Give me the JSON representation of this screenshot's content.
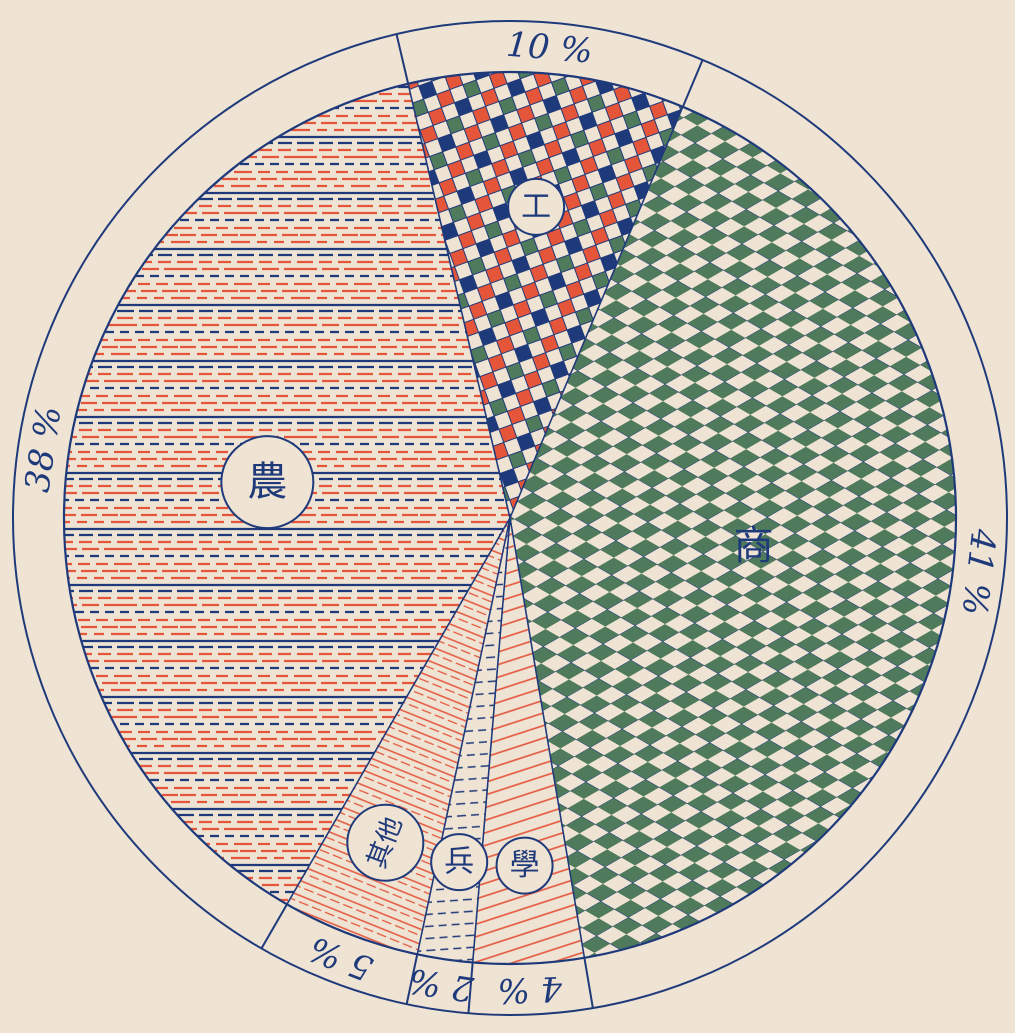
{
  "chart_data": {
    "type": "pie",
    "title": "",
    "slices": [
      {
        "label": "農",
        "value": 38,
        "value_label": "38 %",
        "pattern": "dashes-red-blue"
      },
      {
        "label": "工",
        "value": 10,
        "value_label": "10 %",
        "pattern": "checks-red-blue-green"
      },
      {
        "label": "商",
        "value": 41,
        "value_label": "41 %",
        "pattern": "lattice-green"
      },
      {
        "label": "學",
        "value": 4,
        "value_label": "4 %",
        "pattern": "hatch-red"
      },
      {
        "label": "兵",
        "value": 2,
        "value_label": "2 %",
        "pattern": "dashes-blue"
      },
      {
        "label": "其他",
        "value": 5,
        "value_label": "5 %",
        "pattern": "lines-red"
      }
    ],
    "legend": "none",
    "grid": false
  },
  "colors": {
    "paper": "#efe3d4",
    "ink_blue": "#1f3a7a",
    "ink_red": "#e4553a",
    "ink_green": "#4f7a5c"
  }
}
